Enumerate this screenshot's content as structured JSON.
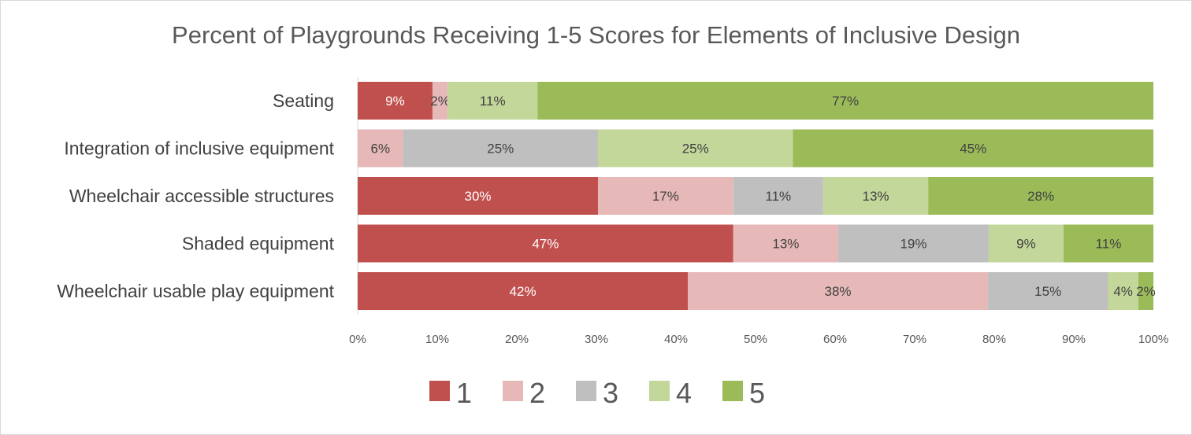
{
  "chart_data": {
    "type": "bar",
    "orientation": "horizontal",
    "stacked": true,
    "title": "Percent of Playgrounds Receiving 1-5 Scores for Elements of Inclusive Design",
    "xlabel": "",
    "ylabel": "",
    "xlim": [
      0,
      100
    ],
    "x_ticks": [
      "0%",
      "10%",
      "20%",
      "30%",
      "40%",
      "50%",
      "60%",
      "70%",
      "80%",
      "90%",
      "100%"
    ],
    "grid": false,
    "legend": "bottom",
    "categories": [
      "Seating",
      "Integration of inclusive equipment",
      "Wheelchair accessible structures",
      "Shaded equipment",
      "Wheelchair usable play equipment"
    ],
    "series": [
      {
        "name": "1",
        "color": "#c0504d",
        "label_color": "#ffffff",
        "values": [
          9.4,
          0,
          30.2,
          47.2,
          41.5
        ],
        "labels": [
          "9%",
          "",
          "30%",
          "47%",
          "42%"
        ]
      },
      {
        "name": "2",
        "color": "#e6b9b8",
        "label_color": "#404040",
        "values": [
          1.9,
          5.7,
          17.0,
          13.2,
          37.7
        ],
        "labels": [
          "2%",
          "6%",
          "17%",
          "13%",
          "38%"
        ]
      },
      {
        "name": "3",
        "color": "#bfbfbf",
        "label_color": "#404040",
        "values": [
          0,
          24.5,
          11.3,
          18.9,
          15.1
        ],
        "labels": [
          "",
          "25%",
          "11%",
          "19%",
          "15%"
        ]
      },
      {
        "name": "4",
        "color": "#c4d79b",
        "label_color": "#404040",
        "values": [
          11.3,
          24.5,
          13.2,
          9.4,
          3.8
        ],
        "labels": [
          "11%",
          "25%",
          "13%",
          "9%",
          "4%"
        ]
      },
      {
        "name": "5",
        "color": "#9bbb59",
        "label_color": "#404040",
        "values": [
          77.4,
          45.3,
          28.3,
          11.3,
          1.9
        ],
        "labels": [
          "77%",
          "45%",
          "28%",
          "11%",
          "2%"
        ]
      }
    ]
  }
}
